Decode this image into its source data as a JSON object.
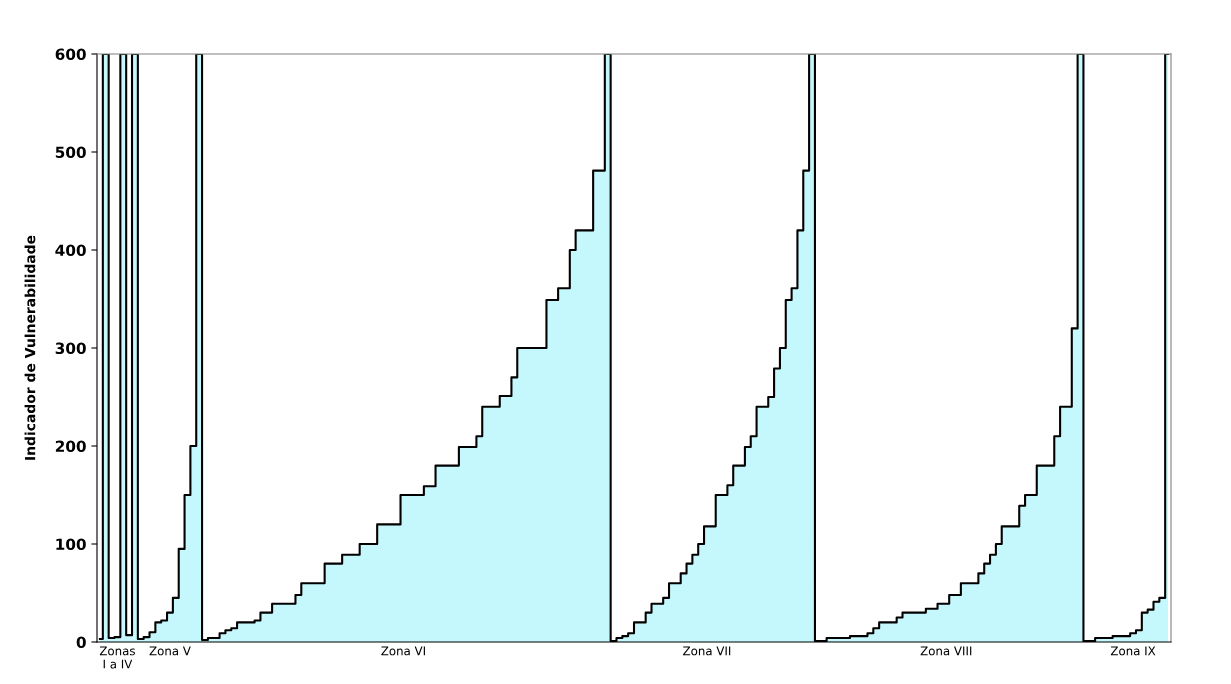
{
  "chart_data": {
    "type": "area",
    "ylabel": "Indicador de Vulnerabilidade",
    "categories": [
      null,
      null,
      null,
      "Zonas\nI a IV",
      null,
      null,
      null,
      null,
      null,
      null,
      null,
      null,
      "Zona V",
      null,
      null,
      null,
      null,
      null,
      null,
      null,
      null,
      null,
      null,
      null,
      null,
      null,
      null,
      null,
      null,
      null,
      null,
      null,
      null,
      null,
      null,
      null,
      null,
      null,
      null,
      null,
      null,
      null,
      null,
      null,
      null,
      null,
      null,
      null,
      null,
      null,
      null,
      null,
      "Zona VI",
      null,
      null,
      null,
      null,
      null,
      null,
      null,
      null,
      null,
      null,
      null,
      null,
      null,
      null,
      null,
      null,
      null,
      null,
      null,
      null,
      null,
      null,
      null,
      null,
      null,
      null,
      null,
      null,
      null,
      null,
      null,
      null,
      null,
      null,
      null,
      null,
      null,
      null,
      null,
      null,
      null,
      null,
      null,
      null,
      null,
      null,
      null,
      null,
      null,
      null,
      null,
      "Zona VII",
      null,
      null,
      null,
      null,
      null,
      null,
      null,
      null,
      null,
      null,
      null,
      null,
      null,
      null,
      null,
      null,
      null,
      null,
      null,
      null,
      null,
      null,
      null,
      null,
      null,
      null,
      null,
      null,
      null,
      null,
      null,
      null,
      null,
      null,
      null,
      null,
      null,
      null,
      null,
      null,
      "Zona VIII",
      null,
      null,
      null,
      null,
      null,
      null,
      null,
      null,
      null,
      null,
      null,
      null,
      null,
      null,
      null,
      null,
      null,
      null,
      null,
      null,
      null,
      null,
      null,
      null,
      null,
      null,
      null,
      null,
      null,
      null,
      null,
      "Zona IX",
      null,
      null,
      null,
      null,
      null,
      null
    ],
    "values": [
      3,
      600,
      4,
      5,
      600,
      7,
      600,
      3,
      5,
      10,
      20,
      22,
      30,
      45,
      95,
      150,
      200,
      600,
      2,
      4,
      4,
      9,
      12,
      14,
      20,
      20,
      20,
      22,
      30,
      30,
      39,
      39,
      39,
      39,
      48,
      60,
      60,
      60,
      60,
      80,
      80,
      80,
      89,
      89,
      89,
      100,
      100,
      100,
      120,
      120,
      120,
      120,
      150,
      150,
      150,
      150,
      159,
      159,
      180,
      180,
      180,
      180,
      199,
      199,
      199,
      210,
      240,
      240,
      240,
      251,
      251,
      270,
      300,
      300,
      300,
      300,
      300,
      349,
      349,
      361,
      361,
      400,
      420,
      420,
      420,
      481,
      481,
      600,
      1,
      4,
      6,
      9,
      20,
      20,
      30,
      39,
      39,
      45,
      60,
      60,
      70,
      80,
      89,
      100,
      118,
      118,
      150,
      150,
      160,
      180,
      180,
      199,
      210,
      240,
      240,
      250,
      279,
      300,
      349,
      361,
      420,
      481,
      600,
      1,
      1,
      4,
      4,
      4,
      4,
      6,
      6,
      6,
      9,
      14,
      20,
      20,
      20,
      25,
      30,
      30,
      30,
      30,
      34,
      34,
      39,
      39,
      48,
      48,
      60,
      60,
      60,
      70,
      80,
      89,
      100,
      118,
      118,
      118,
      139,
      150,
      150,
      180,
      180,
      180,
      210,
      240,
      240,
      320,
      600,
      1,
      1,
      4,
      4,
      4,
      6,
      6,
      6,
      9,
      12,
      30,
      33,
      41,
      45,
      600
    ],
    "color": "#c4f8fc",
    "ylim": [
      0,
      600
    ],
    "yticks": [
      0,
      100,
      200,
      300,
      400,
      500,
      600
    ],
    "grid": false,
    "legend": false
  }
}
